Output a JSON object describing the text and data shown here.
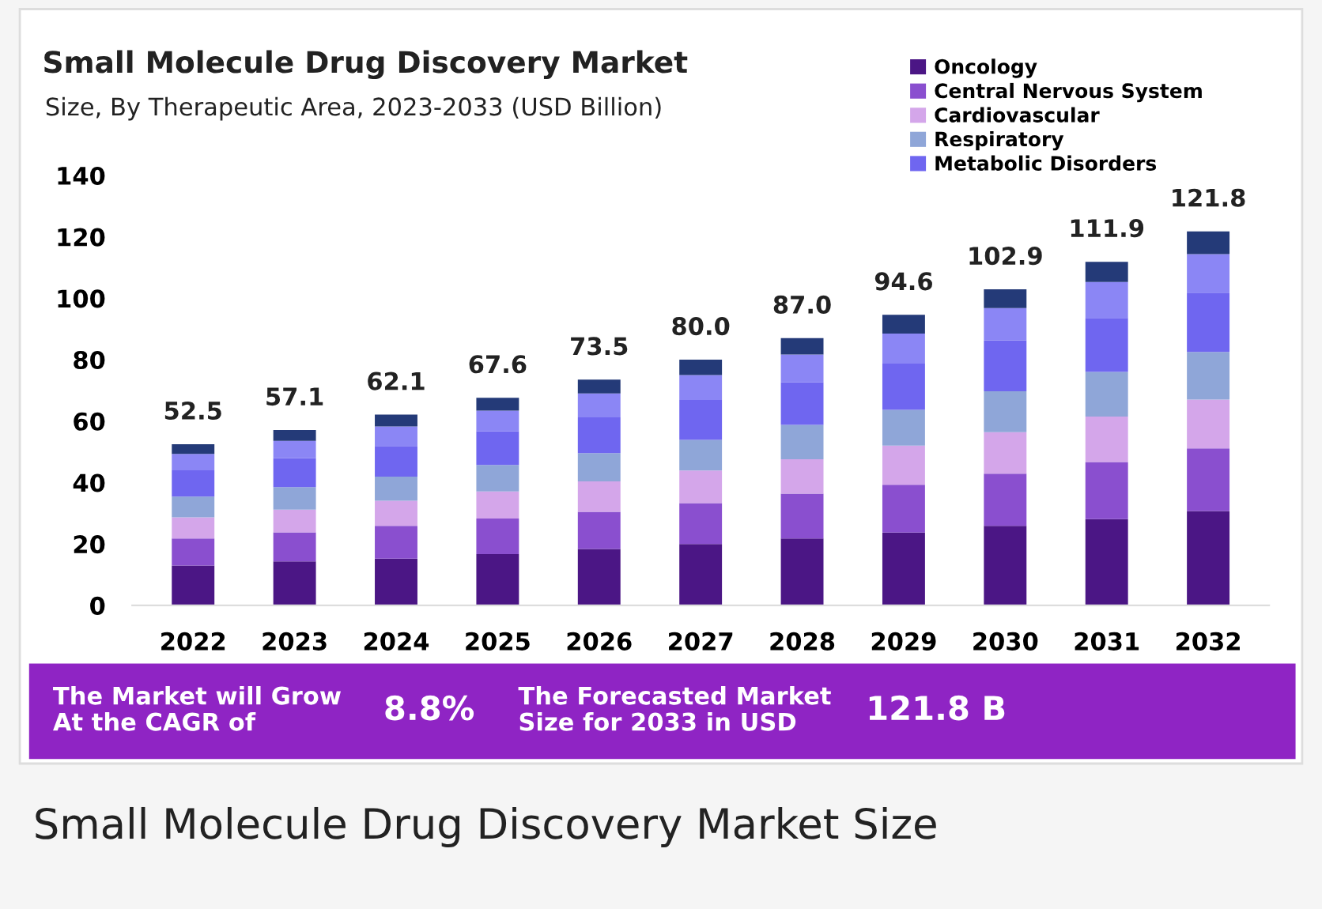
{
  "chart_data": {
    "type": "bar",
    "stacked": true,
    "title": "Small Molecule Drug Discovery Market",
    "subtitle": "Size, By Therapeutic Area, 2023-2033 (USD Billion)",
    "categories": [
      "2022",
      "2023",
      "2024",
      "2025",
      "2026",
      "2027",
      "2028",
      "2029",
      "2030",
      "2031",
      "2032"
    ],
    "series": [
      {
        "name": "Oncology",
        "color": "#4b1685",
        "values": [
          13.0,
          14.3,
          15.2,
          16.7,
          18.4,
          20.0,
          21.8,
          23.7,
          25.9,
          28.1,
          30.7
        ]
      },
      {
        "name": "Central Nervous System",
        "color": "#8a4fcf",
        "values": [
          8.8,
          9.5,
          10.7,
          11.6,
          12.1,
          13.3,
          14.6,
          15.6,
          17.0,
          18.6,
          20.4
        ]
      },
      {
        "name": "Cardiovascular",
        "color": "#d4a6ea",
        "values": [
          6.9,
          7.4,
          8.2,
          8.8,
          9.9,
          10.6,
          11.2,
          12.7,
          13.5,
          14.8,
          15.9
        ]
      },
      {
        "name": "Respiratory",
        "color": "#8fa6d8",
        "values": [
          6.7,
          7.3,
          7.8,
          8.6,
          9.2,
          10.0,
          11.2,
          11.7,
          13.3,
          14.5,
          15.5
        ]
      },
      {
        "name": "Metabolic Disorders",
        "color": "#6f66f0",
        "values": [
          8.6,
          9.4,
          10.0,
          11.0,
          11.6,
          13.0,
          13.8,
          15.0,
          16.6,
          17.6,
          19.3
        ]
      },
      {
        "color": "#8b86f5",
        "values": [
          5.3,
          5.7,
          6.4,
          6.7,
          7.8,
          8.1,
          9.1,
          9.8,
          10.5,
          11.7,
          12.6
        ]
      },
      {
        "color": "#243a78",
        "values": [
          3.2,
          3.5,
          3.8,
          4.2,
          4.5,
          5.0,
          5.3,
          6.1,
          6.1,
          6.6,
          7.4
        ]
      }
    ],
    "totals": [
      "52.5",
      "57.1",
      "62.1",
      "67.6",
      "73.5",
      "80.0",
      "87.0",
      "94.6",
      "102.9",
      "111.9",
      "121.8"
    ],
    "ylim": [
      0,
      140
    ],
    "yticks": [
      0,
      20,
      40,
      60,
      80,
      100,
      120,
      140
    ],
    "grid": false,
    "legend": "top right",
    "annotations": [
      "The Market will Grow\nAt the CAGR of",
      "8.8%",
      "The Forecasted Market\nSize for 2033 in USD",
      "121.8 B",
      "Small Molecule Drug Discovery Market Size"
    ]
  }
}
